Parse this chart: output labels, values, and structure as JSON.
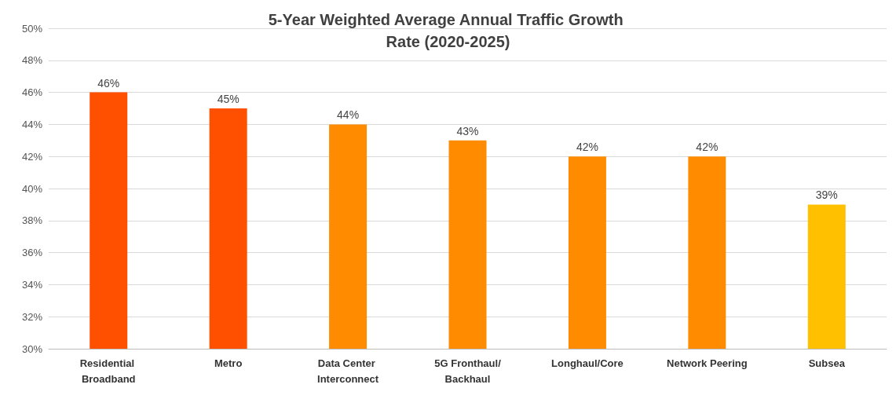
{
  "chart_data": {
    "type": "bar",
    "title": "5-Year Weighted Average Annual Traffic Growth Rate (2020-2025)",
    "categories": [
      "Residential Broadband",
      "Metro",
      "Data Center Interconnect",
      "5G Fronthaul/Backhaul",
      "Longhaul/Core",
      "Network Peering",
      "Subsea"
    ],
    "values": [
      46,
      45,
      44,
      43,
      42,
      42,
      39
    ],
    "colors": [
      "#ff5000",
      "#ff5000",
      "#ff8c00",
      "#ff8c00",
      "#ff8c00",
      "#ff8c00",
      "#ffc000"
    ],
    "value_labels": [
      "46%",
      "45%",
      "44%",
      "43%",
      "42%",
      "42%",
      "39%"
    ],
    "ylim": [
      30,
      50
    ],
    "yticks": [
      {
        "value": 30,
        "label": "30%"
      },
      {
        "value": 32,
        "label": "32%"
      },
      {
        "value": 34,
        "label": "34%"
      },
      {
        "value": 36,
        "label": "36%"
      },
      {
        "value": 38,
        "label": "38%"
      },
      {
        "value": 40,
        "label": "40%"
      },
      {
        "value": 42,
        "label": "42%"
      },
      {
        "value": 44,
        "label": "44%"
      },
      {
        "value": 46,
        "label": "46%"
      },
      {
        "value": 48,
        "label": "48%"
      },
      {
        "value": 50,
        "label": "50%"
      }
    ],
    "grid": "y"
  }
}
